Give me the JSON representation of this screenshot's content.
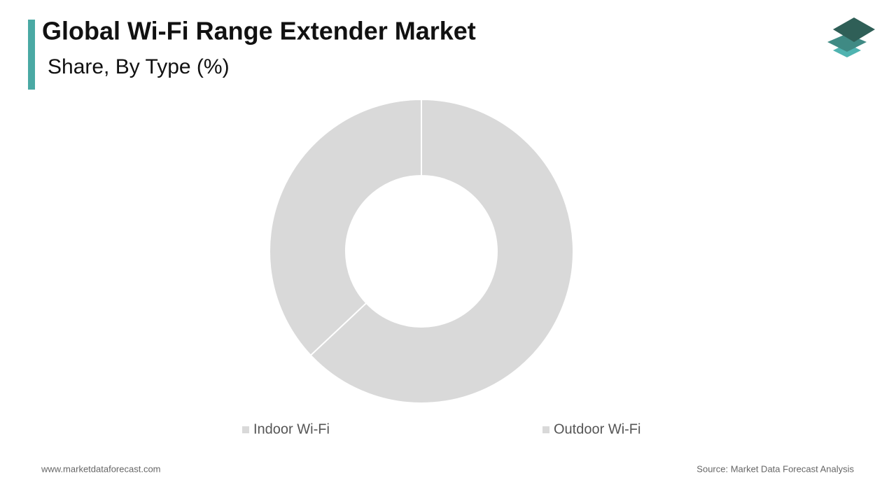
{
  "chart_data": {
    "type": "donut",
    "title": "Global Wi-Fi Range Extender Market",
    "subtitle": "Share, By Type (%)",
    "categories": [
      "Indoor Wi-Fi",
      "Outdoor Wi-Fi"
    ],
    "values": [
      63,
      37
    ],
    "colors": [
      "#d9d9d9",
      "#d9d9d9"
    ]
  },
  "footer": {
    "website": "www.marketdataforecast.com",
    "source": "Source: Market Data Forecast Analysis"
  }
}
